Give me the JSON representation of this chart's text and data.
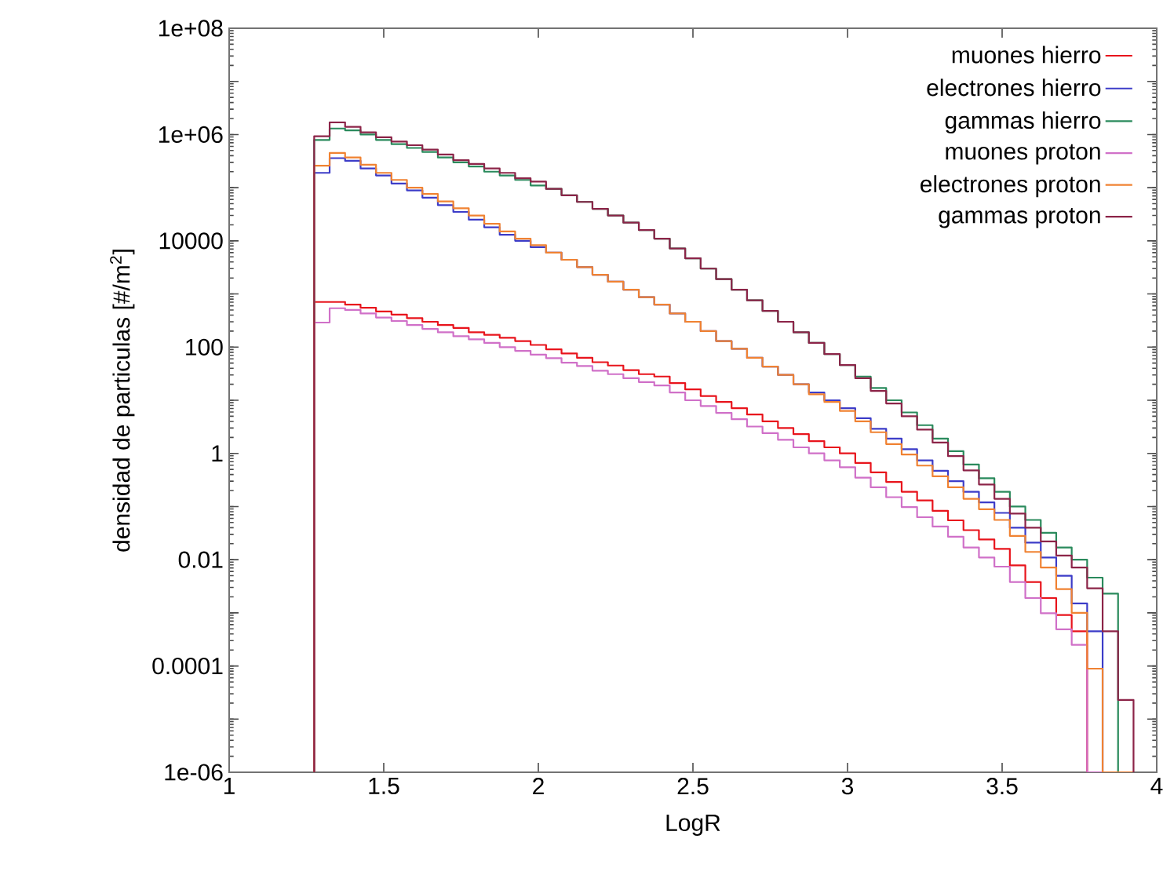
{
  "chart_data": {
    "type": "histogram",
    "xlabel": "LogR",
    "ylabel": "densidad de particulas [#/m$^{2}$]",
    "log": "y",
    "legend": "top right",
    "grid": false,
    "xlim": [
      1,
      4
    ],
    "xticks": [
      1,
      1.5,
      2,
      2.5,
      3,
      3.5,
      4
    ],
    "ylim": [
      1e-06,
      100000000.0
    ],
    "yticks": [
      {
        "value": 1e-06,
        "label": "1e-06"
      },
      {
        "value": 1e-05,
        "label": null
      },
      {
        "value": 0.0001,
        "label": "0.0001"
      },
      {
        "value": 0.001,
        "label": null
      },
      {
        "value": 0.01,
        "label": "0.01"
      },
      {
        "value": 0.1,
        "label": null
      },
      {
        "value": 1,
        "label": "1"
      },
      {
        "value": 10,
        "label": null
      },
      {
        "value": 100,
        "label": "100"
      },
      {
        "value": 1000,
        "label": null
      },
      {
        "value": 10000,
        "label": "10000"
      },
      {
        "value": 100000,
        "label": null
      },
      {
        "value": 1000000,
        "label": "1e+06"
      },
      {
        "value": 10000000,
        "label": null
      },
      {
        "value": 100000000,
        "label": "1e+08"
      }
    ],
    "bins": [
      1.275,
      1.325,
      1.375,
      1.425,
      1.475,
      1.525,
      1.575,
      1.625,
      1.675,
      1.725,
      1.775,
      1.825,
      1.875,
      1.925,
      1.975,
      2.025,
      2.075,
      2.125,
      2.175,
      2.225,
      2.275,
      2.325,
      2.375,
      2.425,
      2.475,
      2.525,
      2.575,
      2.625,
      2.675,
      2.725,
      2.775,
      2.825,
      2.875,
      2.925,
      2.975,
      3.025,
      3.075,
      3.125,
      3.175,
      3.225,
      3.275,
      3.325,
      3.375,
      3.425,
      3.475,
      3.525,
      3.575,
      3.625,
      3.675,
      3.725,
      3.775,
      3.825,
      3.875,
      3.925
    ],
    "series": [
      {
        "name": "muones hierro",
        "color": "#e8141c",
        "values": [
          710,
          710,
          630,
          550,
          470,
          410,
          350,
          300,
          260,
          230,
          190,
          170,
          150,
          130,
          110,
          91,
          76,
          63,
          52,
          45,
          37,
          31,
          28,
          21,
          16,
          12,
          9.3,
          7.1,
          5.4,
          4.0,
          3.0,
          2.3,
          1.7,
          1.3,
          1.0,
          0.66,
          0.44,
          0.29,
          0.19,
          0.13,
          0.083,
          0.055,
          0.036,
          0.024,
          0.016,
          0.0078,
          0.0038,
          0.0019,
          0.00091,
          0.00045,
          null,
          null,
          null
        ]
      },
      {
        "name": "electrones hierro",
        "color": "#3c3cc8",
        "values": [
          190000,
          360000,
          320000,
          230000,
          170000,
          120000,
          89000,
          65000,
          47000,
          35000,
          25000,
          18000,
          13000,
          10000,
          7600,
          6000,
          4400,
          3200,
          2300,
          1700,
          1200,
          870,
          630,
          430,
          300,
          200,
          130,
          93,
          63,
          43,
          30,
          20,
          14,
          10,
          7.1,
          4.6,
          2.9,
          1.9,
          1.2,
          0.74,
          0.47,
          0.3,
          0.19,
          0.12,
          0.076,
          0.04,
          0.021,
          0.011,
          0.005,
          0.0015,
          0.00045,
          null,
          null
        ]
      },
      {
        "name": "gammas hierro",
        "color": "#2a8a5c",
        "values": [
          790000,
          1300000,
          1200000,
          1000000,
          790000,
          660000,
          560000,
          470000,
          370000,
          300000,
          250000,
          200000,
          170000,
          140000,
          110000,
          95000,
          72000,
          54000,
          40000,
          30000,
          22000,
          16000,
          11000,
          7200,
          4700,
          3000,
          1900,
          1200,
          760,
          480,
          300,
          190,
          120,
          74,
          46,
          28,
          17,
          10,
          5.9,
          3.4,
          1.9,
          1.1,
          0.62,
          0.34,
          0.19,
          0.1,
          0.056,
          0.032,
          0.017,
          0.01,
          0.0046,
          0.0023,
          null
        ]
      },
      {
        "name": "muones proton",
        "color": "#d070c8",
        "values": [
          290,
          540,
          500,
          430,
          360,
          310,
          260,
          220,
          190,
          160,
          140,
          120,
          100,
          85,
          72,
          62,
          51,
          44,
          36,
          31,
          26,
          22,
          19,
          14,
          10,
          7.8,
          5.8,
          4.4,
          3.2,
          2.4,
          1.8,
          1.3,
          1.0,
          0.74,
          0.55,
          0.35,
          0.23,
          0.15,
          0.098,
          0.063,
          0.042,
          0.027,
          0.017,
          0.011,
          0.0074,
          0.0038,
          0.0019,
          0.00098,
          0.00049,
          0.00025,
          null,
          null,
          null
        ]
      },
      {
        "name": "electrones proton",
        "color": "#f08232",
        "values": [
          260000,
          450000,
          370000,
          270000,
          190000,
          140000,
          100000,
          76000,
          55000,
          41000,
          30000,
          21000,
          15000,
          11000,
          8300,
          6000,
          4400,
          3200,
          2300,
          1700,
          1200,
          870,
          630,
          430,
          300,
          200,
          130,
          93,
          63,
          43,
          30,
          20,
          13,
          9.3,
          6.3,
          4.0,
          2.5,
          1.5,
          0.95,
          0.59,
          0.37,
          0.23,
          0.14,
          0.089,
          0.056,
          0.028,
          0.014,
          0.0071,
          0.0028,
          0.001,
          8.9e-05,
          null,
          null
        ]
      },
      {
        "name": "gammas proton",
        "color": "#8c2448",
        "values": [
          930000,
          1700000,
          1400000,
          1100000,
          890000,
          740000,
          630000,
          520000,
          420000,
          330000,
          280000,
          230000,
          190000,
          150000,
          130000,
          95000,
          72000,
          54000,
          40000,
          30000,
          22000,
          16000,
          11000,
          7200,
          4700,
          3000,
          1900,
          1200,
          760,
          480,
          300,
          190,
          120,
          74,
          46,
          26,
          15,
          8.7,
          5.0,
          2.8,
          1.6,
          0.89,
          0.48,
          0.26,
          0.14,
          0.074,
          0.04,
          0.022,
          0.012,
          0.0071,
          0.0029,
          0.00045,
          2.3e-05
        ]
      }
    ]
  }
}
